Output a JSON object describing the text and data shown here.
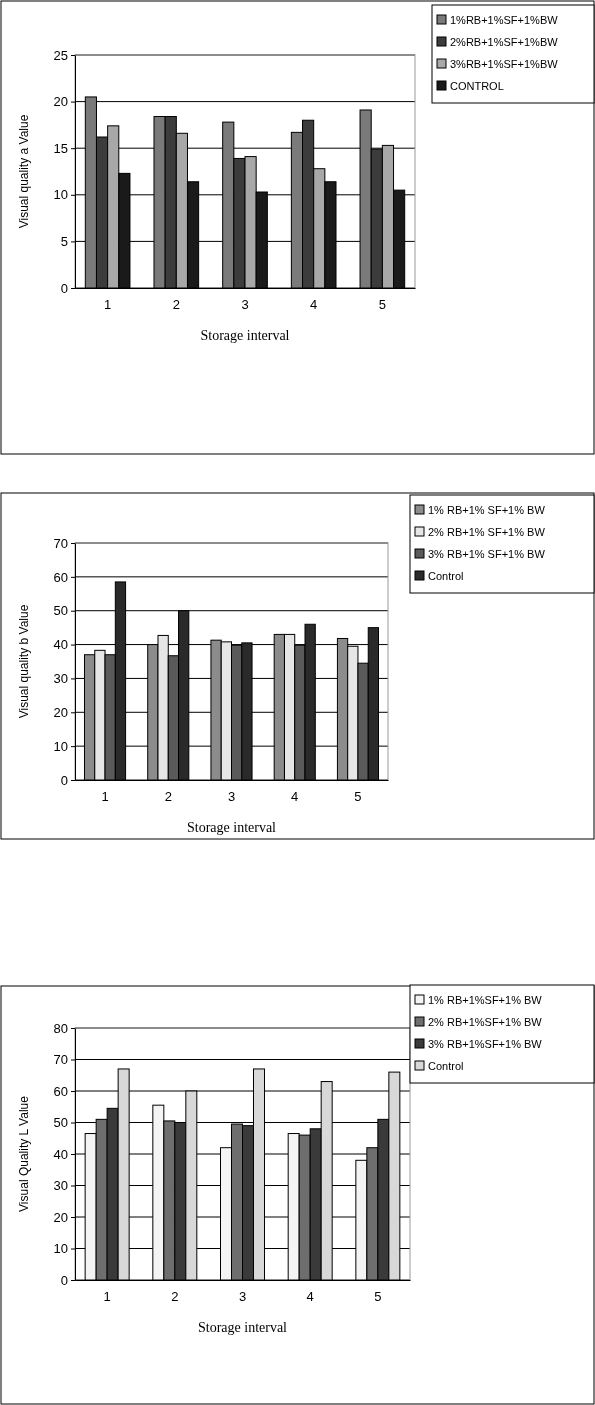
{
  "chart_data": [
    {
      "type": "bar",
      "xlabel": "Storage interval",
      "ylabel": "Visual quality a Value",
      "categories": [
        "1",
        "2",
        "3",
        "4",
        "5"
      ],
      "ylim": [
        0,
        25
      ],
      "yticks": [
        0,
        5,
        10,
        15,
        20,
        25
      ],
      "grid": "y",
      "legend": "top right",
      "series": [
        {
          "name": "1%RB+1%SF+1%BW",
          "color": "#7a7a7a",
          "values": [
            20.5,
            18.4,
            17.8,
            16.7,
            19.1
          ]
        },
        {
          "name": "2%RB+1%SF+1%BW",
          "color": "#3c3c3c",
          "values": [
            16.2,
            18.4,
            13.9,
            18.0,
            14.9
          ]
        },
        {
          "name": "3%RB+1%SF+1%BW",
          "color": "#a8a8a8",
          "values": [
            17.4,
            16.6,
            14.1,
            12.8,
            15.3
          ]
        },
        {
          "name": "CONTROL",
          "color": "#1a1a1a",
          "values": [
            12.3,
            11.4,
            10.3,
            11.4,
            10.5
          ]
        }
      ]
    },
    {
      "type": "bar",
      "xlabel": "Storage interval",
      "ylabel": "Visual quality b Value",
      "categories": [
        "1",
        "2",
        "3",
        "4",
        "5"
      ],
      "ylim": [
        0,
        70
      ],
      "yticks": [
        0,
        10,
        20,
        30,
        40,
        50,
        60,
        70
      ],
      "grid": "y",
      "legend": "top right",
      "series": [
        {
          "name": "1% RB+1% SF+1% BW",
          "color": "#8c8c8c",
          "values": [
            37,
            40,
            41.3,
            43,
            41.8
          ]
        },
        {
          "name": "2% RB+1% SF+1% BW",
          "color": "#e6e6e6",
          "values": [
            38.3,
            42.7,
            40.8,
            43,
            39.5
          ]
        },
        {
          "name": "3% RB+1% SF+1% BW",
          "color": "#5a5a5a",
          "values": [
            37,
            36.7,
            39.8,
            39.8,
            34.5
          ]
        },
        {
          "name": "Control",
          "color": "#2a2a2a",
          "values": [
            58.5,
            50,
            40.5,
            46,
            45
          ]
        }
      ]
    },
    {
      "type": "bar",
      "xlabel": "Storage interval",
      "ylabel": "Visual Quality L Value",
      "categories": [
        "1",
        "2",
        "3",
        "4",
        "5"
      ],
      "ylim": [
        0,
        80
      ],
      "yticks": [
        0,
        10,
        20,
        30,
        40,
        50,
        60,
        70,
        80
      ],
      "grid": "y",
      "legend": "top right",
      "series": [
        {
          "name": "1% RB+1%SF+1% BW",
          "color": "#f4f4f4",
          "values": [
            46.5,
            55.5,
            42,
            46.5,
            38
          ]
        },
        {
          "name": "2% RB+1%SF+1% BW",
          "color": "#6e6e6e",
          "values": [
            51,
            50.5,
            49.5,
            46,
            42
          ]
        },
        {
          "name": "3% RB+1%SF+1% BW",
          "color": "#3a3a3a",
          "values": [
            54.5,
            50,
            49,
            48,
            51
          ]
        },
        {
          "name": "Control",
          "color": "#d8d8d8",
          "values": [
            67,
            60,
            67,
            63,
            66
          ]
        }
      ]
    }
  ]
}
